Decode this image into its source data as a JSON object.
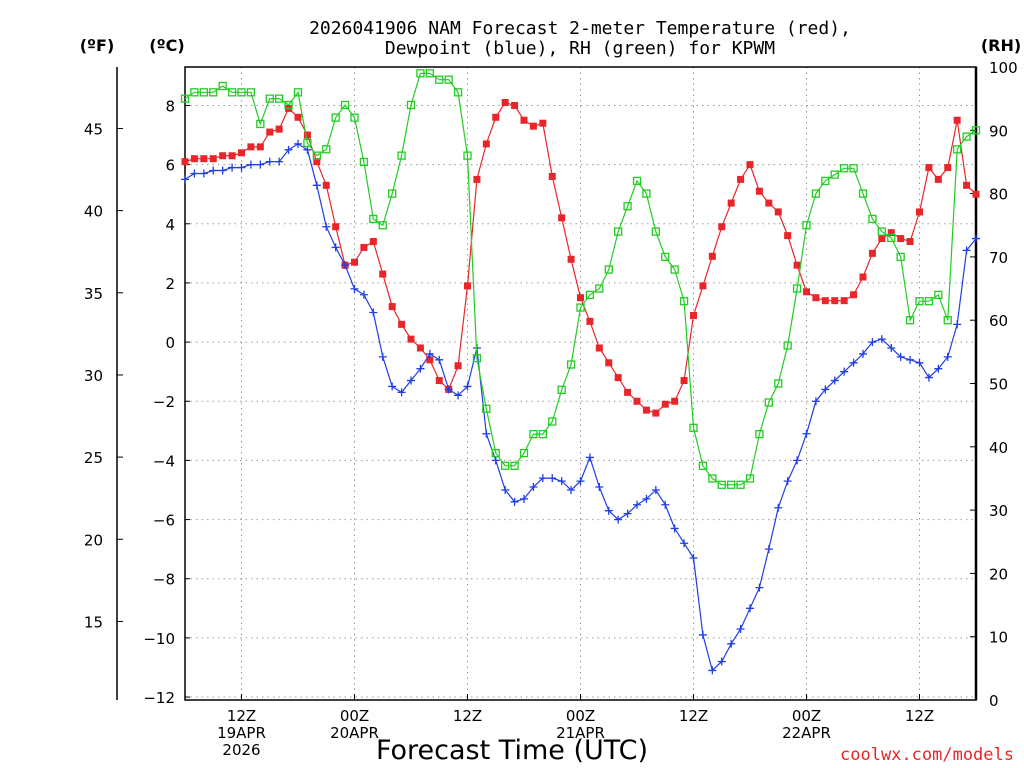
{
  "chart_data": {
    "type": "line",
    "title_line1": "2026041906 NAM Forecast 2-meter Temperature (red),",
    "title_line2": "Dewpoint (blue), RH (green) for KPWM",
    "xlabel": "Forecast Time (UTC)",
    "credit": "coolwx.com/models",
    "axis_labels": {
      "fahrenheit": "(ºF)",
      "celsius": "(ºC)",
      "rh": "(RH)"
    },
    "x_hours": {
      "start": 6,
      "end": 90,
      "step": 1
    },
    "x_ticks": [
      {
        "hour": 12,
        "lines": [
          "12Z",
          "19APR",
          "2026"
        ]
      },
      {
        "hour": 24,
        "lines": [
          "00Z",
          "20APR"
        ]
      },
      {
        "hour": 36,
        "lines": [
          "12Z"
        ]
      },
      {
        "hour": 48,
        "lines": [
          "00Z",
          "21APR"
        ]
      },
      {
        "hour": 60,
        "lines": [
          "12Z"
        ]
      },
      {
        "hour": 72,
        "lines": [
          "00Z",
          "22APR"
        ]
      },
      {
        "hour": 84,
        "lines": [
          "12Z"
        ]
      }
    ],
    "celsius_axis": {
      "min": -12.1,
      "max": 9.3,
      "ticks": [
        "8",
        "6",
        "4",
        "2",
        "0",
        "−2",
        "−4",
        "−6",
        "−8",
        "−10",
        "−12"
      ],
      "tick_values": [
        8,
        6,
        4,
        2,
        0,
        -2,
        -4,
        -6,
        -8,
        -10,
        -12
      ]
    },
    "fahrenheit_axis": {
      "ticks": [
        "45",
        "40",
        "35",
        "30",
        "25",
        "20",
        "15"
      ],
      "tick_values": [
        45,
        40,
        35,
        30,
        25,
        20,
        15
      ]
    },
    "rh_axis": {
      "min": 0,
      "max": 100,
      "ticks": [
        "100",
        "90",
        "80",
        "70",
        "60",
        "50",
        "40",
        "30",
        "20",
        "10",
        "0"
      ],
      "tick_values": [
        100,
        90,
        80,
        70,
        60,
        50,
        40,
        30,
        20,
        10,
        0
      ]
    },
    "series": [
      {
        "name": "Temperature",
        "unit": "°C",
        "color": "#e8262a",
        "marker": "filled-square",
        "values": [
          6.1,
          6.2,
          6.2,
          6.2,
          6.3,
          6.3,
          6.4,
          6.6,
          6.6,
          7.1,
          7.2,
          7.9,
          7.6,
          7.0,
          6.1,
          5.3,
          3.9,
          2.6,
          2.7,
          3.2,
          3.4,
          2.3,
          1.2,
          0.6,
          0.1,
          -0.2,
          -0.6,
          -1.3,
          -1.6,
          -0.8,
          1.9,
          5.5,
          6.7,
          7.6,
          8.1,
          8.0,
          7.5,
          7.3,
          7.4,
          5.6,
          4.2,
          2.8,
          1.5,
          0.7,
          -0.2,
          -0.7,
          -1.2,
          -1.7,
          -2.0,
          -2.3,
          -2.4,
          -2.1,
          -2.0,
          -1.3,
          0.9,
          1.9,
          2.9,
          3.9,
          4.7,
          5.5,
          6.0,
          5.1,
          4.7,
          4.4,
          3.6,
          2.6,
          1.7,
          1.5,
          1.4,
          1.4,
          1.4,
          1.6,
          2.2,
          3.0,
          3.5,
          3.7,
          3.5,
          3.4,
          4.4,
          5.9,
          5.5,
          5.9,
          7.5,
          5.3,
          5.0
        ]
      },
      {
        "name": "Dewpoint",
        "unit": "°C",
        "color": "#1f3ee6",
        "marker": "plus",
        "values": [
          5.5,
          5.7,
          5.7,
          5.8,
          5.8,
          5.9,
          5.9,
          6.0,
          6.0,
          6.1,
          6.1,
          6.5,
          6.7,
          6.5,
          5.3,
          3.9,
          3.2,
          2.6,
          1.8,
          1.6,
          1.0,
          -0.5,
          -1.5,
          -1.7,
          -1.3,
          -0.9,
          -0.4,
          -0.6,
          -1.6,
          -1.8,
          -1.5,
          -0.2,
          -3.1,
          -4.0,
          -5.0,
          -5.4,
          -5.3,
          -4.9,
          -4.6,
          -4.6,
          -4.7,
          -5.0,
          -4.7,
          -3.9,
          -4.9,
          -5.7,
          -6.0,
          -5.8,
          -5.5,
          -5.3,
          -5.0,
          -5.5,
          -6.3,
          -6.8,
          -7.3,
          -9.9,
          -11.1,
          -10.8,
          -10.2,
          -9.7,
          -9.0,
          -8.3,
          -7.0,
          -5.6,
          -4.7,
          -4.0,
          -3.1,
          -2.0,
          -1.6,
          -1.3,
          -1.0,
          -0.7,
          -0.4,
          0.0,
          0.1,
          -0.2,
          -0.5,
          -0.6,
          -0.7,
          -1.2,
          -0.9,
          -0.5,
          0.6,
          3.1,
          3.5
        ]
      },
      {
        "name": "RH",
        "unit": "%",
        "color": "#22cc22",
        "marker": "open-square",
        "values": [
          95,
          96,
          96,
          96,
          97,
          96,
          96,
          96,
          91,
          95,
          95,
          94,
          96,
          88,
          86,
          87,
          92,
          94,
          92,
          85,
          76,
          75,
          80,
          86,
          94,
          99,
          99,
          98,
          98,
          96,
          86,
          54,
          46,
          39,
          37,
          37,
          39,
          42,
          42,
          44,
          49,
          53,
          62,
          64,
          65,
          68,
          74,
          78,
          82,
          80,
          74,
          70,
          68,
          63,
          43,
          37,
          35,
          34,
          34,
          34,
          35,
          42,
          47,
          50,
          56,
          65,
          75,
          80,
          82,
          83,
          84,
          84,
          80,
          76,
          74,
          73,
          70,
          60,
          63,
          63,
          64,
          60,
          87,
          89,
          90
        ]
      }
    ]
  }
}
